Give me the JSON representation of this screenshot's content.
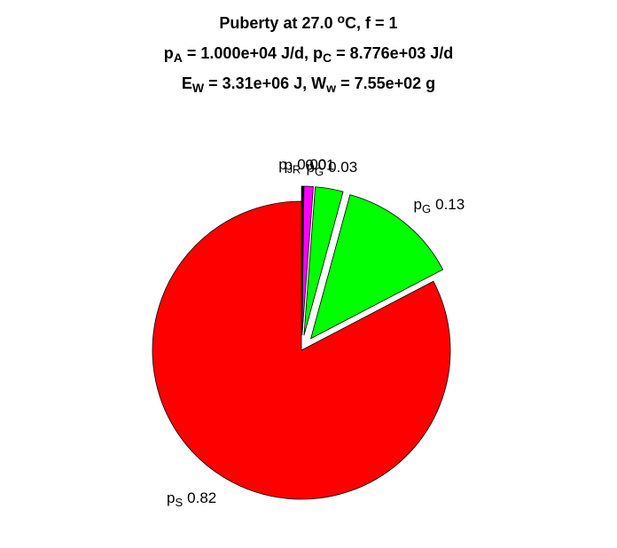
{
  "chart_data": {
    "type": "pie",
    "title_lines": [
      [
        {
          "t": "Puberty at 27.0 "
        },
        {
          "t": "o",
          "sup": true
        },
        {
          "t": "C, f = 1"
        }
      ],
      [
        {
          "t": "p"
        },
        {
          "t": "A",
          "sub": true
        },
        {
          "t": " = 1.000e+04 J/d,  p"
        },
        {
          "t": "C",
          "sub": true
        },
        {
          "t": " = 8.776e+03 J/d"
        }
      ],
      [
        {
          "t": "E"
        },
        {
          "t": "W",
          "sub": true
        },
        {
          "t": " = 3.31e+06 J, W"
        },
        {
          "t": "w",
          "sub": true
        },
        {
          "t": " = 7.55e+02 g"
        }
      ]
    ],
    "slices": [
      {
        "symbol": "p",
        "sub": "J",
        "color": "#000000",
        "explode": true
      },
      {
        "symbol": "p",
        "sub": "R",
        "color": "#ff00ff",
        "explode": true
      },
      {
        "symbol": "p",
        "sub": "G",
        "color": "#00ff00",
        "explode": true
      },
      {
        "symbol": "p",
        "sub": "G",
        "color": "#00ff00",
        "explode": true
      },
      {
        "symbol": "p",
        "sub": "S",
        "color": "#ff0000",
        "explode": false
      }
    ],
    "values": [
      0.002,
      0.01,
      0.03,
      0.13,
      0.82
    ],
    "value_labels": [
      "0.00",
      "0.01",
      "0.03",
      "0.13",
      "0.82"
    ]
  }
}
